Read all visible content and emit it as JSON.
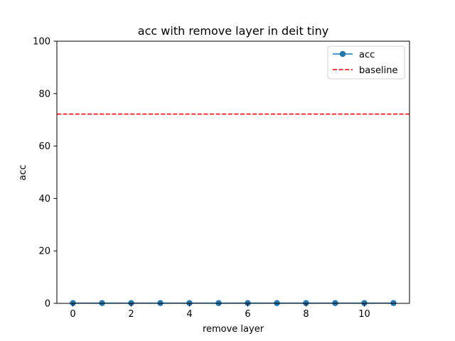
{
  "chart_data": {
    "type": "line",
    "title": "acc with remove layer in deit tiny",
    "xlabel": "remove layer",
    "ylabel": "acc",
    "xlim": [
      -0.55,
      11.55
    ],
    "ylim": [
      0,
      100
    ],
    "xticks": [
      0,
      2,
      4,
      6,
      8,
      10
    ],
    "yticks": [
      0,
      20,
      40,
      60,
      80,
      100
    ],
    "grid": false,
    "legend_position": "top-right",
    "series": [
      {
        "name": "acc",
        "style": "line-with-circle-markers",
        "color": "#1f77b4",
        "x": [
          0,
          1,
          2,
          3,
          4,
          5,
          6,
          7,
          8,
          9,
          10,
          11
        ],
        "y": [
          0.1,
          0.1,
          0.1,
          0.1,
          0.1,
          0.1,
          0.1,
          0.1,
          0.1,
          0.1,
          0.1,
          0.1
        ]
      }
    ],
    "reference_lines": [
      {
        "name": "baseline",
        "orientation": "horizontal",
        "y": 72.2,
        "style": "dashed",
        "color": "#ff0000"
      }
    ]
  }
}
